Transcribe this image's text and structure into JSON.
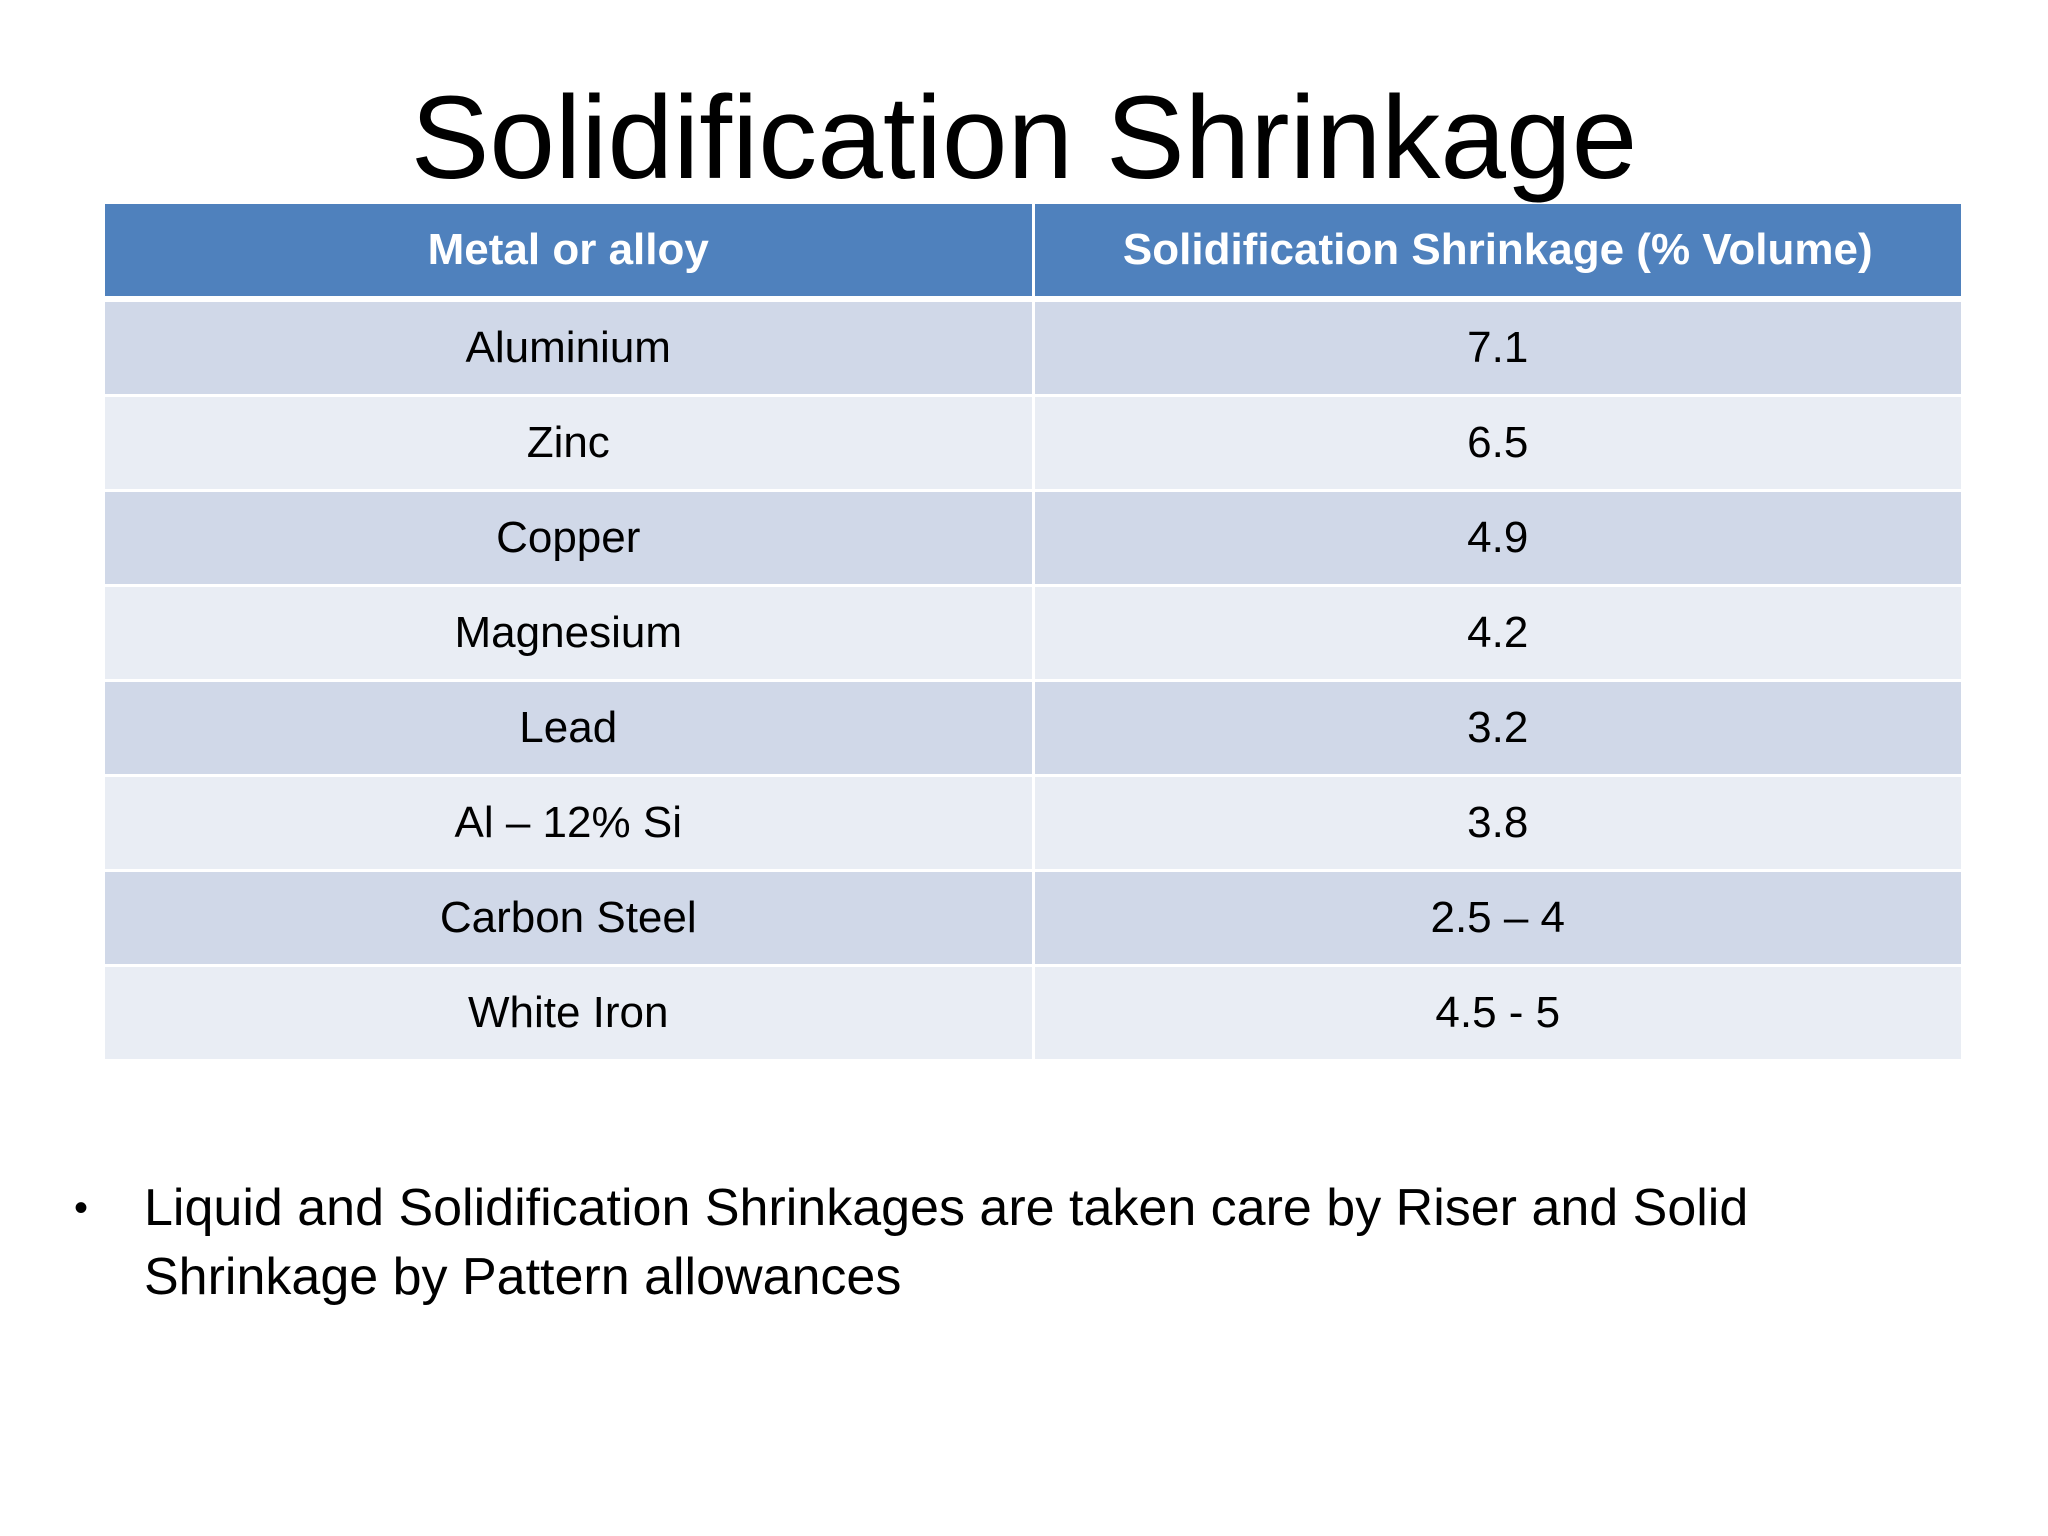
{
  "slide": {
    "title": "Solidification Shrinkage"
  },
  "table": {
    "headers": [
      "Metal or alloy",
      "Solidification Shrinkage (% Volume)"
    ],
    "rows": [
      [
        "Aluminium",
        "7.1"
      ],
      [
        "Zinc",
        "6.5"
      ],
      [
        "Copper",
        "4.9"
      ],
      [
        "Magnesium",
        "4.2"
      ],
      [
        "Lead",
        "3.2"
      ],
      [
        "Al – 12% Si",
        "3.8"
      ],
      [
        "Carbon Steel",
        "2.5 – 4"
      ],
      [
        "White Iron",
        "4.5 - 5"
      ]
    ],
    "colors": {
      "header_bg": "#4f81bd",
      "row_odd_bg": "#d0d8e8",
      "row_even_bg": "#e9edf4"
    }
  },
  "bullets": [
    {
      "mark": "•",
      "text": "Liquid and Solidification Shrinkages are taken care by Riser and Solid Shrinkage by Pattern allowances"
    }
  ]
}
